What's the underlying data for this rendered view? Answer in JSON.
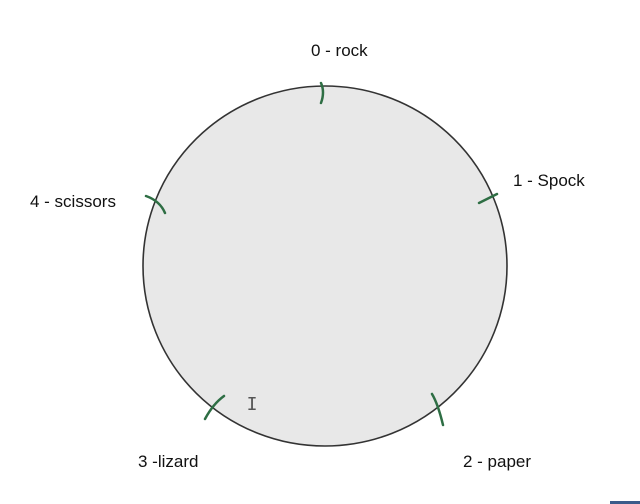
{
  "diagram": {
    "circle_fill": "#e8e8e8",
    "circle_stroke": "#333333",
    "tick_color": "#2e6e44",
    "nodes": [
      {
        "label": "0 - rock"
      },
      {
        "label": "1 - Spock"
      },
      {
        "label": "2 - paper"
      },
      {
        "label": "3 -lizard"
      },
      {
        "label": "4 - scissors"
      }
    ]
  },
  "cursor": {
    "icon": "text-cursor-icon",
    "glyph": "I"
  }
}
